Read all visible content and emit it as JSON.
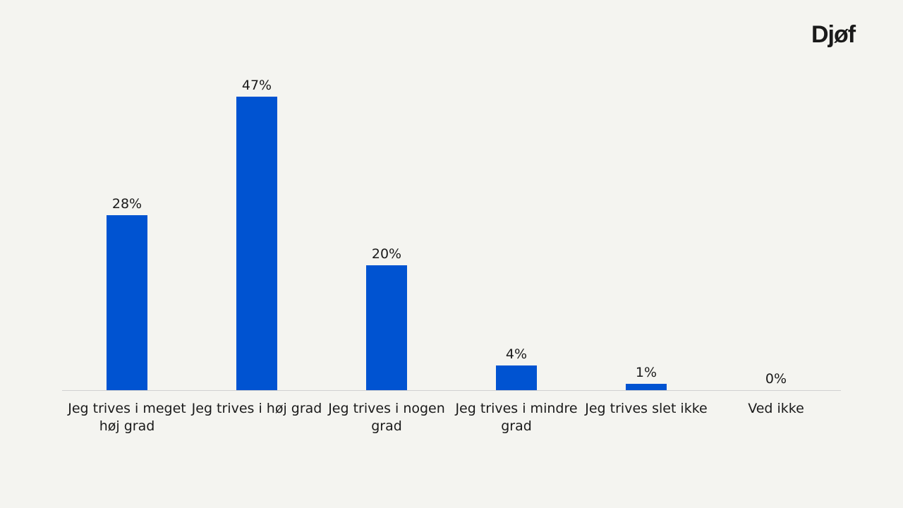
{
  "logo": {
    "text": "Djøf"
  },
  "chart_data": {
    "type": "bar",
    "categories": [
      [
        "Jeg trives i meget",
        "høj grad"
      ],
      [
        "Jeg trives i høj grad"
      ],
      [
        "Jeg trives i nogen",
        "grad"
      ],
      [
        "Jeg trives i mindre",
        "grad"
      ],
      [
        "Jeg trives slet ikke"
      ],
      [
        "Ved ikke"
      ]
    ],
    "values": [
      28,
      47,
      20,
      4,
      1,
      0
    ],
    "value_labels": [
      "28%",
      "47%",
      "20%",
      "4%",
      "1%",
      "0%"
    ],
    "unit": "%",
    "bar_color": "#0053d1",
    "baseline_color": "#d0d0d0",
    "title": "",
    "xlabel": "",
    "ylabel": "",
    "ylim": [
      0,
      47
    ],
    "grid": false,
    "legend": "none"
  }
}
